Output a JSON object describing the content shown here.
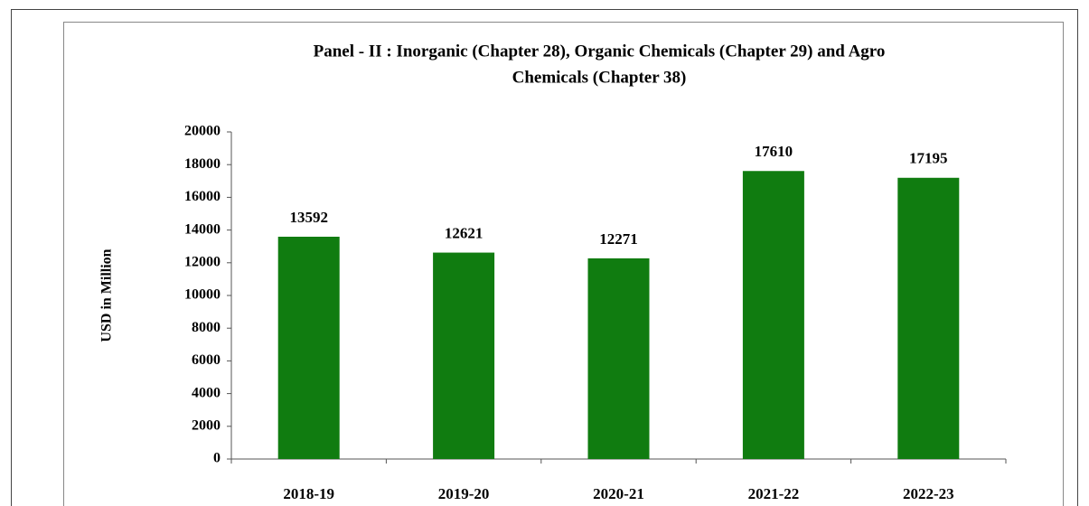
{
  "chart_data": {
    "type": "bar",
    "title": [
      "Panel - II : Inorganic (Chapter 28),  Organic Chemicals (Chapter 29) and Agro",
      "Chemicals (Chapter 38)"
    ],
    "ylabel": "USD in Million",
    "categories": [
      "2018-19",
      "2019-20",
      "2020-21",
      "2021-22",
      "2022-23"
    ],
    "values": [
      13592,
      12621,
      12271,
      17610,
      17195
    ],
    "color": "#107c10",
    "ylim": [
      0,
      20000
    ],
    "yticks": [
      0,
      2000,
      4000,
      6000,
      8000,
      10000,
      12000,
      14000,
      16000,
      18000,
      20000
    ],
    "grid": false
  }
}
